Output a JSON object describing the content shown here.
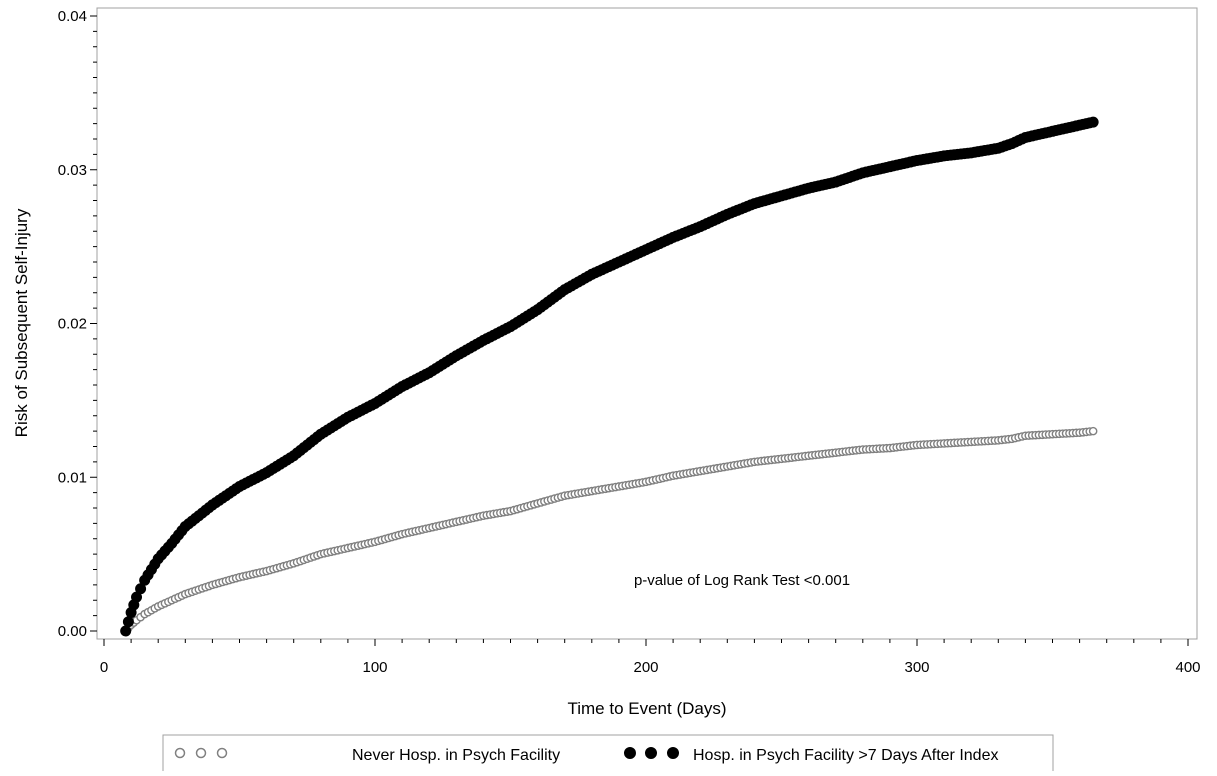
{
  "chart_data": {
    "type": "scatter",
    "title": "",
    "xlabel": "Time to Event (Days)",
    "ylabel": "Risk of Subsequent Self-Injury",
    "xlim": [
      0,
      400
    ],
    "ylim": [
      0,
      0.04
    ],
    "x_ticks": [
      0,
      100,
      200,
      300,
      400
    ],
    "x_tick_labels": [
      "0",
      "100",
      "200",
      "300",
      "400"
    ],
    "y_ticks": [
      0,
      0.01,
      0.02,
      0.03,
      0.04
    ],
    "y_tick_labels": [
      "0.00",
      "0.01",
      "0.02",
      "0.03",
      "0.04"
    ],
    "grid": false,
    "legend_position": "bottom",
    "annotation": "p-value of Log Rank Test <0.001",
    "series": [
      {
        "name": "Never Hosp. in Psych Facility",
        "marker": "open-circle",
        "color": "#808080",
        "x": [
          8,
          10,
          12,
          15,
          20,
          25,
          30,
          40,
          50,
          60,
          70,
          80,
          90,
          100,
          110,
          120,
          130,
          140,
          150,
          160,
          170,
          180,
          190,
          200,
          210,
          220,
          230,
          240,
          250,
          260,
          270,
          280,
          290,
          300,
          310,
          320,
          330,
          335,
          340,
          350,
          360,
          365
        ],
        "y": [
          0.0,
          0.0004,
          0.0007,
          0.0011,
          0.0016,
          0.002,
          0.0024,
          0.003,
          0.0035,
          0.0039,
          0.0044,
          0.005,
          0.0054,
          0.0058,
          0.0063,
          0.0067,
          0.0071,
          0.0075,
          0.0078,
          0.0083,
          0.0088,
          0.0091,
          0.0094,
          0.0097,
          0.0101,
          0.0104,
          0.0107,
          0.011,
          0.0112,
          0.0114,
          0.0116,
          0.0118,
          0.0119,
          0.0121,
          0.0122,
          0.0123,
          0.0124,
          0.0125,
          0.0127,
          0.0128,
          0.0129,
          0.013
        ]
      },
      {
        "name": "Hosp. in Psych Facility >7 Days After Index",
        "marker": "filled-circle",
        "color": "#000000",
        "x": [
          8,
          10,
          12,
          15,
          20,
          25,
          30,
          40,
          50,
          60,
          70,
          80,
          90,
          100,
          110,
          120,
          130,
          140,
          150,
          160,
          170,
          180,
          190,
          200,
          210,
          220,
          230,
          240,
          250,
          260,
          270,
          280,
          290,
          300,
          310,
          320,
          330,
          335,
          340,
          350,
          360,
          365
        ],
        "y": [
          0.0,
          0.0012,
          0.0022,
          0.0033,
          0.0047,
          0.0057,
          0.0068,
          0.0082,
          0.0094,
          0.0103,
          0.0114,
          0.0128,
          0.0139,
          0.0148,
          0.0159,
          0.0168,
          0.0179,
          0.0189,
          0.0198,
          0.0209,
          0.0222,
          0.0232,
          0.024,
          0.0248,
          0.0256,
          0.0263,
          0.0271,
          0.0278,
          0.0283,
          0.0288,
          0.0292,
          0.0298,
          0.0302,
          0.0306,
          0.0309,
          0.0311,
          0.0314,
          0.0317,
          0.0321,
          0.0325,
          0.0329,
          0.0331
        ]
      }
    ]
  }
}
